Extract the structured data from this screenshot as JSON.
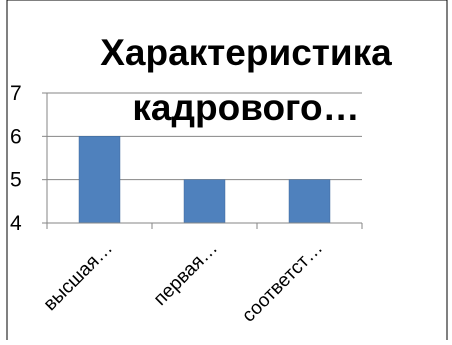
{
  "chart_data": {
    "type": "bar",
    "title_lines": [
      "Характеристика",
      "кадрового…"
    ],
    "categories": [
      "высшая…",
      "первая…",
      "соответст…"
    ],
    "values": [
      6,
      5,
      5
    ],
    "ylim": [
      4,
      7
    ],
    "yticks": [
      "4",
      "5",
      "6",
      "7"
    ],
    "grid": true,
    "legend": "none",
    "colors": {
      "bar": "#4F81BD",
      "bar_border": "#3B6698",
      "grid": "#868686",
      "axis": "#868686",
      "frame": "#000000"
    }
  }
}
